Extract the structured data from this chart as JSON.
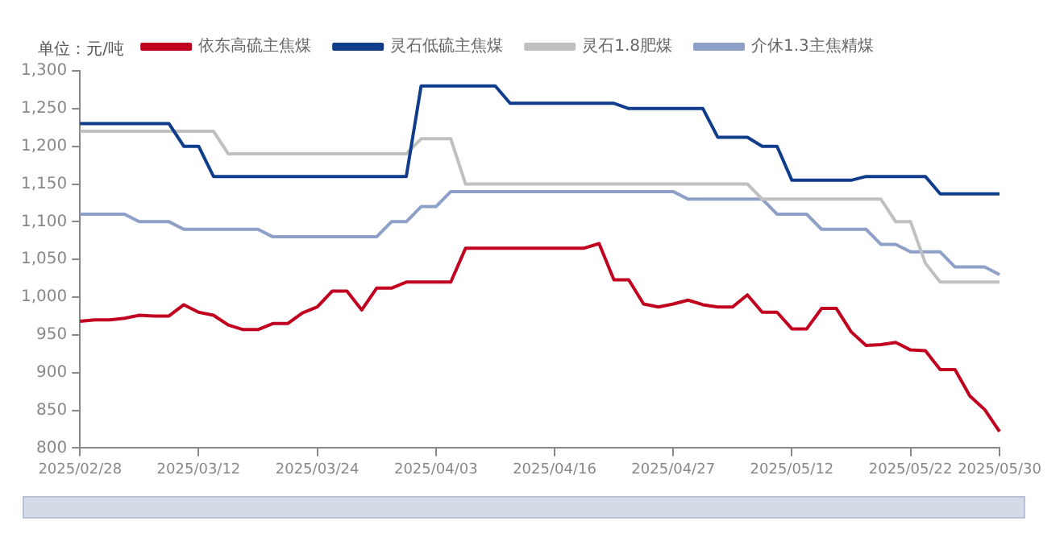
{
  "chart_data": {
    "type": "line",
    "ylabel": "单位：元/吨",
    "categories": [
      "2025/02/28",
      null,
      null,
      null,
      null,
      null,
      null,
      null,
      "2025/03/12",
      null,
      null,
      null,
      null,
      null,
      null,
      null,
      "2025/03/24",
      null,
      null,
      null,
      null,
      null,
      null,
      null,
      "2025/04/03",
      null,
      null,
      null,
      null,
      null,
      null,
      null,
      "2025/04/16",
      null,
      null,
      null,
      null,
      null,
      null,
      null,
      "2025/04/27",
      null,
      null,
      null,
      null,
      null,
      null,
      null,
      "2025/05/12",
      null,
      null,
      null,
      null,
      null,
      null,
      null,
      "2025/05/22",
      null,
      null,
      null,
      null,
      null,
      "2025/05/30"
    ],
    "series": [
      {
        "name": "依东高硫主焦煤",
        "color": "#c0001e",
        "values": [
          968,
          970,
          970,
          972,
          976,
          975,
          975,
          990,
          980,
          976,
          963,
          957,
          957,
          965,
          965,
          979,
          987,
          1008,
          1008,
          983,
          1012,
          1012,
          1020,
          1020,
          1020,
          1020,
          1065,
          1065,
          1065,
          1065,
          1065,
          1065,
          1065,
          1065,
          1065,
          1071,
          1023,
          1023,
          991,
          987,
          991,
          996,
          990,
          987,
          987,
          1003,
          980,
          980,
          958,
          958,
          985,
          985,
          954,
          936,
          937,
          940,
          930,
          929,
          904,
          904,
          869,
          851,
          822
        ]
      },
      {
        "name": "灵石低硫主焦煤",
        "color": "#0f3d8c",
        "values": [
          1230,
          1230,
          1230,
          1230,
          1230,
          1230,
          1230,
          1200,
          1200,
          1160,
          1160,
          1160,
          1160,
          1160,
          1160,
          1160,
          1160,
          1160,
          1160,
          1160,
          1160,
          1160,
          1160,
          1280,
          1280,
          1280,
          1280,
          1280,
          1280,
          1257,
          1257,
          1257,
          1257,
          1257,
          1257,
          1257,
          1257,
          1250,
          1250,
          1250,
          1250,
          1250,
          1250,
          1212,
          1212,
          1212,
          1200,
          1200,
          1155,
          1155,
          1155,
          1155,
          1155,
          1160,
          1160,
          1160,
          1160,
          1160,
          1137,
          1137,
          1137,
          1137,
          1137
        ]
      },
      {
        "name": "灵石1.8肥煤",
        "color": "#c0c0c0",
        "values": [
          1220,
          1220,
          1220,
          1220,
          1220,
          1220,
          1220,
          1220,
          1220,
          1220,
          1190,
          1190,
          1190,
          1190,
          1190,
          1190,
          1190,
          1190,
          1190,
          1190,
          1190,
          1190,
          1190,
          1210,
          1210,
          1210,
          1150,
          1150,
          1150,
          1150,
          1150,
          1150,
          1150,
          1150,
          1150,
          1150,
          1150,
          1150,
          1150,
          1150,
          1150,
          1150,
          1150,
          1150,
          1150,
          1150,
          1130,
          1130,
          1130,
          1130,
          1130,
          1130,
          1130,
          1130,
          1130,
          1100,
          1100,
          1045,
          1020,
          1020,
          1020,
          1020,
          1020
        ]
      },
      {
        "name": "介休1.3主焦精煤",
        "color": "#8fa0c8",
        "values": [
          1110,
          1110,
          1110,
          1110,
          1100,
          1100,
          1100,
          1090,
          1090,
          1090,
          1090,
          1090,
          1090,
          1080,
          1080,
          1080,
          1080,
          1080,
          1080,
          1080,
          1080,
          1100,
          1100,
          1120,
          1120,
          1140,
          1140,
          1140,
          1140,
          1140,
          1140,
          1140,
          1140,
          1140,
          1140,
          1140,
          1140,
          1140,
          1140,
          1140,
          1140,
          1130,
          1130,
          1130,
          1130,
          1130,
          1130,
          1110,
          1110,
          1110,
          1090,
          1090,
          1090,
          1090,
          1070,
          1070,
          1060,
          1060,
          1060,
          1040,
          1040,
          1040,
          1030
        ]
      }
    ],
    "ylim": [
      800,
      1300
    ],
    "yticks": [
      {
        "value": 800,
        "label": "800"
      },
      {
        "value": 850,
        "label": "850"
      },
      {
        "value": 900,
        "label": "900"
      },
      {
        "value": 950,
        "label": "950"
      },
      {
        "value": 1000,
        "label": "1,000"
      },
      {
        "value": 1050,
        "label": "1,050"
      },
      {
        "value": 1100,
        "label": "1,100"
      },
      {
        "value": 1150,
        "label": "1,150"
      },
      {
        "value": 1200,
        "label": "1,200"
      },
      {
        "value": 1250,
        "label": "1,250"
      },
      {
        "value": 1300,
        "label": "1,300"
      }
    ],
    "grid": false,
    "legend": "top",
    "marker": "none",
    "line_style": "solid"
  }
}
